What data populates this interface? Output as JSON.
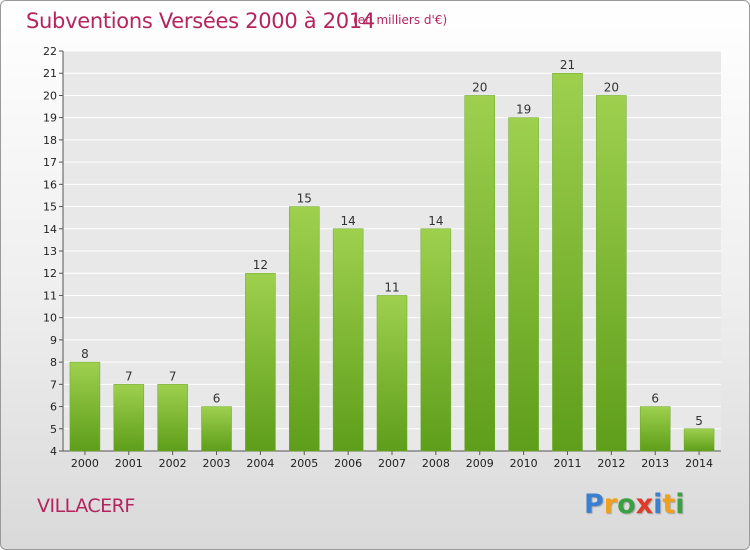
{
  "chart_data": {
    "type": "bar",
    "title": "Subventions Versées 2000 à 2014",
    "subtitle": "(en milliers d'€)",
    "categories": [
      "2000",
      "2001",
      "2002",
      "2003",
      "2004",
      "2005",
      "2006",
      "2007",
      "2008",
      "2009",
      "2010",
      "2011",
      "2012",
      "2013",
      "2014"
    ],
    "values": [
      8,
      7,
      7,
      6,
      12,
      15,
      14,
      11,
      14,
      20,
      19,
      21,
      20,
      6,
      5
    ],
    "xlabel": "",
    "ylabel": "",
    "ylim": [
      4,
      22
    ],
    "yticks": [
      4,
      5,
      6,
      7,
      8,
      9,
      10,
      11,
      12,
      13,
      14,
      15,
      16,
      17,
      18,
      19,
      20,
      21,
      22
    ],
    "grid": true,
    "bar_color_top": "#9ed04e",
    "bar_color_bottom": "#5e9e1a"
  },
  "footer": {
    "commune": "VILLACERF"
  },
  "logo": {
    "letters": [
      "P",
      "r",
      "o",
      "x",
      "i",
      "t",
      "i"
    ],
    "colors": [
      "#3a7fd0",
      "#f0a020",
      "#3aa040",
      "#e03a2a",
      "#3a7fd0",
      "#f0a020",
      "#3aa040"
    ]
  }
}
